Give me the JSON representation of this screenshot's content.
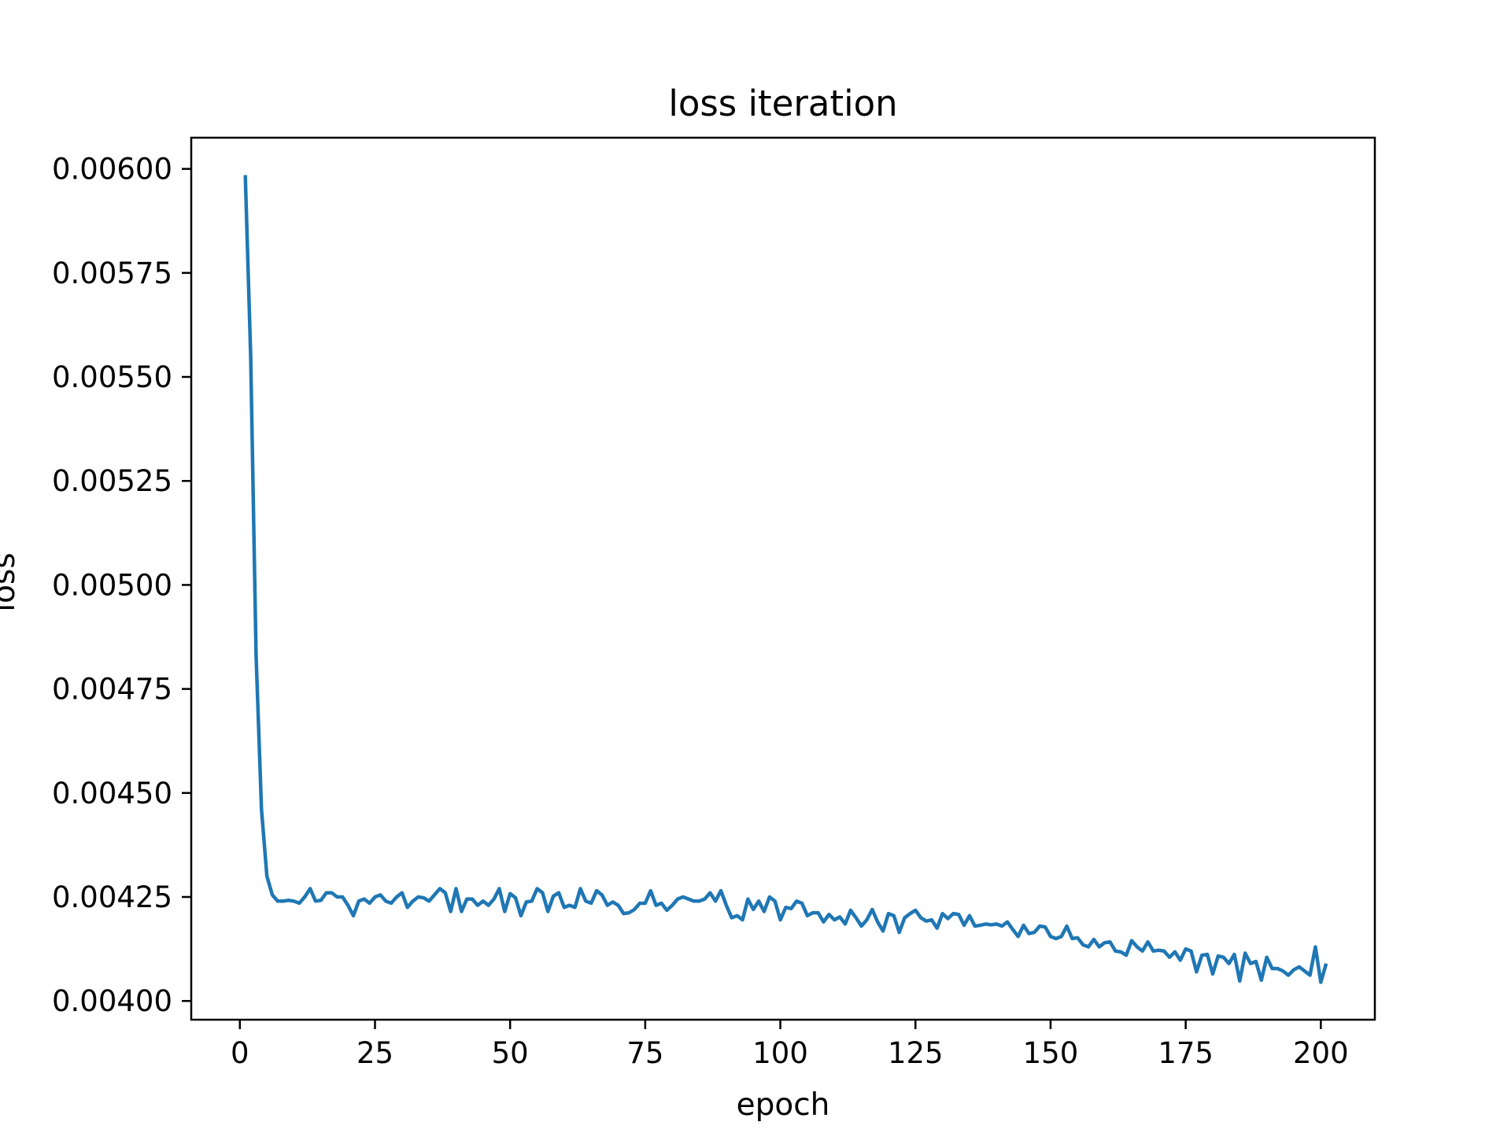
{
  "chart_data": {
    "type": "line",
    "title": "loss iteration",
    "xlabel": "epoch",
    "ylabel": "loss",
    "xlim": [
      -9,
      210
    ],
    "ylim": [
      0.003955,
      0.006075
    ],
    "grid": false,
    "legend": "none",
    "xticks": [
      0,
      25,
      50,
      75,
      100,
      125,
      150,
      175,
      200
    ],
    "xtick_labels": [
      "0",
      "25",
      "50",
      "75",
      "100",
      "125",
      "150",
      "175",
      "200"
    ],
    "yticks": [
      0.004,
      0.00425,
      0.0045,
      0.00475,
      0.005,
      0.00525,
      0.0055,
      0.00575,
      0.006
    ],
    "ytick_labels": [
      "0.00400",
      "0.00425",
      "0.00450",
      "0.00475",
      "0.00500",
      "0.00525",
      "0.00550",
      "0.00575",
      "0.00600"
    ],
    "series": [
      {
        "color": "#1f77b4",
        "x_start": 1,
        "x_step": 1,
        "values": [
          0.005985,
          0.00555,
          0.00483,
          0.00446,
          0.0043,
          0.004255,
          0.00424,
          0.00424,
          0.004242,
          0.00424,
          0.004235,
          0.00425,
          0.00427,
          0.00424,
          0.004242,
          0.00426,
          0.00426,
          0.00425,
          0.00425,
          0.00423,
          0.004205,
          0.00424,
          0.004245,
          0.004235,
          0.00425,
          0.004255,
          0.00424,
          0.004235,
          0.00425,
          0.00426,
          0.004225,
          0.00424,
          0.00425,
          0.004248,
          0.00424,
          0.004255,
          0.00427,
          0.00426,
          0.004215,
          0.00427,
          0.004215,
          0.004245,
          0.004245,
          0.00423,
          0.00424,
          0.00423,
          0.004245,
          0.00427,
          0.004215,
          0.004258,
          0.004248,
          0.004205,
          0.004238,
          0.00424,
          0.00427,
          0.00426,
          0.004215,
          0.004252,
          0.00426,
          0.004225,
          0.00423,
          0.004225,
          0.00427,
          0.00424,
          0.004235,
          0.004265,
          0.004255,
          0.00423,
          0.004238,
          0.00423,
          0.00421,
          0.004212,
          0.00422,
          0.004235,
          0.004235,
          0.004265,
          0.00423,
          0.004235,
          0.004218,
          0.00423,
          0.004245,
          0.00425,
          0.004245,
          0.00424,
          0.00424,
          0.004245,
          0.00426,
          0.00424,
          0.004265,
          0.00423,
          0.0042,
          0.004205,
          0.004195,
          0.004245,
          0.00422,
          0.00424,
          0.004215,
          0.00425,
          0.00424,
          0.004195,
          0.004225,
          0.004222,
          0.00424,
          0.004235,
          0.004205,
          0.004212,
          0.004212,
          0.00419,
          0.004208,
          0.004195,
          0.004202,
          0.004185,
          0.004218,
          0.0042,
          0.00418,
          0.004195,
          0.00422,
          0.00419,
          0.004168,
          0.00421,
          0.004205,
          0.004165,
          0.0042,
          0.00421,
          0.004218,
          0.0042,
          0.004192,
          0.004195,
          0.004175,
          0.00421,
          0.004198,
          0.00421,
          0.004208,
          0.004182,
          0.004205,
          0.00418,
          0.004182,
          0.004185,
          0.004183,
          0.004185,
          0.00418,
          0.00419,
          0.004172,
          0.004155,
          0.004182,
          0.004162,
          0.004165,
          0.00418,
          0.004178,
          0.004155,
          0.00415,
          0.004155,
          0.00418,
          0.00415,
          0.004152,
          0.004135,
          0.00413,
          0.004148,
          0.00413,
          0.00414,
          0.004142,
          0.00412,
          0.004118,
          0.00411,
          0.004145,
          0.00413,
          0.00412,
          0.004142,
          0.00412,
          0.004122,
          0.00412,
          0.004105,
          0.004118,
          0.004098,
          0.004125,
          0.00412,
          0.00407,
          0.00411,
          0.004112,
          0.004065,
          0.004108,
          0.004105,
          0.00409,
          0.004112,
          0.004048,
          0.004115,
          0.00409,
          0.004095,
          0.00405,
          0.004105,
          0.004078,
          0.004078,
          0.004072,
          0.004062,
          0.004075,
          0.004082,
          0.004072,
          0.004062,
          0.00413,
          0.004045,
          0.00409
        ]
      }
    ]
  }
}
